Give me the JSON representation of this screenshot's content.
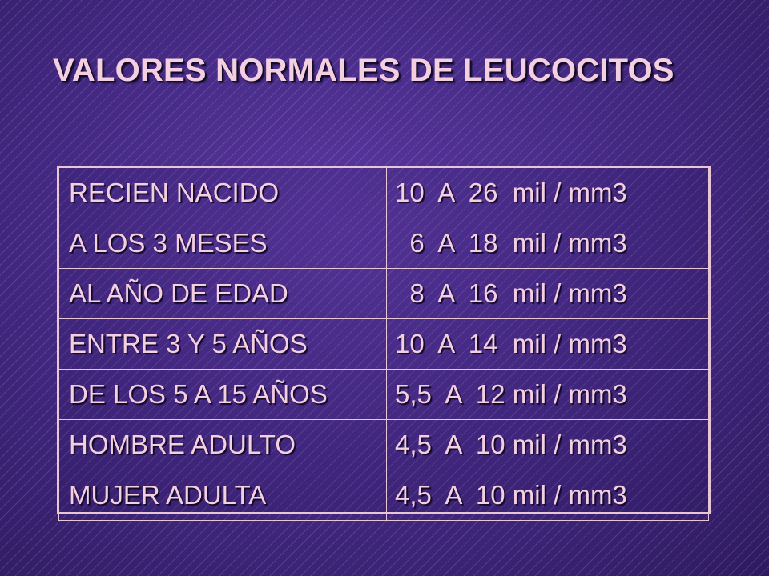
{
  "title": "VALORES NORMALES DE LEUCOCITOS",
  "rows": [
    {
      "age": "RECIEN NACIDO",
      "value": "10  A  26  mil / mm3"
    },
    {
      "age": "A LOS 3 MESES",
      "value": "  6  A  18  mil / mm3"
    },
    {
      "age": "AL AÑO DE EDAD",
      "value": "  8  A  16  mil / mm3"
    },
    {
      "age": "ENTRE 3 Y 5 AÑOS",
      "value": "10  A  14  mil / mm3"
    },
    {
      "age": "DE LOS 5 A 15 AÑOS",
      "value": "5,5  A  12 mil / mm3"
    },
    {
      "age": "HOMBRE ADULTO",
      "value": "4,5  A  10 mil / mm3"
    },
    {
      "age": "MUJER ADULTA",
      "value": "4,5  A  10 mil / mm3"
    }
  ],
  "colors": {
    "background": "#462a86",
    "text": "#f4cfe0",
    "border": "#e9c6d6"
  }
}
